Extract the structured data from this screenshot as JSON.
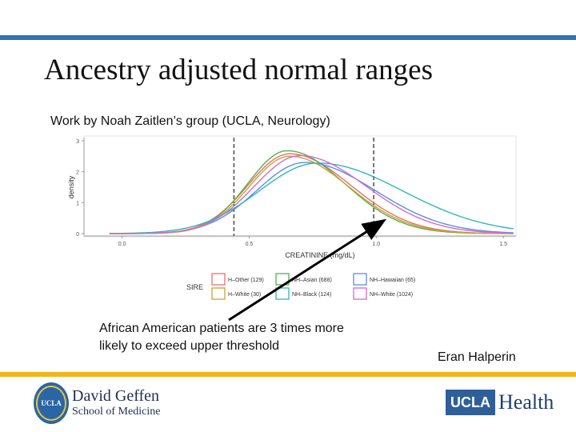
{
  "slide": {
    "title": "Ancestry adjusted normal ranges",
    "subtitle": "Work by Noah Zaitlen’s group (UCLA, Neurology)",
    "annotation": [
      "African American patients are 3 times more",
      "likely to exceed upper threshold"
    ],
    "author": "Eran Halperin",
    "logos": {
      "seal_text": "UCLA",
      "dg_line1": "David Geffen",
      "dg_line2": "School of Medicine",
      "ucla": "UCLA",
      "health": "Health"
    }
  },
  "colors": {
    "top_bar": "#2f74b5",
    "bottom_bar": "#f3b41b"
  },
  "chart_data": {
    "type": "line",
    "xlabel": "CREATININE (mg/dL)",
    "ylabel": "density",
    "xlim": [
      -0.15,
      1.55
    ],
    "ylim": [
      0,
      3
    ],
    "x_ticks": [
      "0.0",
      "0.5",
      "1.0",
      "1.5"
    ],
    "y_ticks": [
      "0",
      "1",
      "2",
      "3"
    ],
    "thresholds": [
      0.44,
      0.99
    ],
    "legend_title": "SIRE",
    "series": [
      {
        "name": "H–Other (129)",
        "color": "#e8706b",
        "mean": 0.66,
        "sd": 0.165,
        "peak": 2.58
      },
      {
        "name": "NH–Asian (688)",
        "color": "#55b04d",
        "mean": 0.65,
        "sd": 0.155,
        "peak": 2.68
      },
      {
        "name": "NH–Hawaiian (65)",
        "color": "#5b8de6",
        "mean": 0.72,
        "sd": 0.19,
        "peak": 2.3
      },
      {
        "name": "H–White (30)",
        "color": "#c7a432",
        "mean": 0.66,
        "sd": 0.16,
        "peak": 2.5
      },
      {
        "name": "NH–Black (124)",
        "color": "#2fb7b3",
        "mean": 0.77,
        "sd": 0.23,
        "peak": 2.28
      },
      {
        "name": "NH–White (1024)",
        "color": "#d56ad3",
        "mean": 0.7,
        "sd": 0.18,
        "peak": 2.52
      }
    ]
  }
}
